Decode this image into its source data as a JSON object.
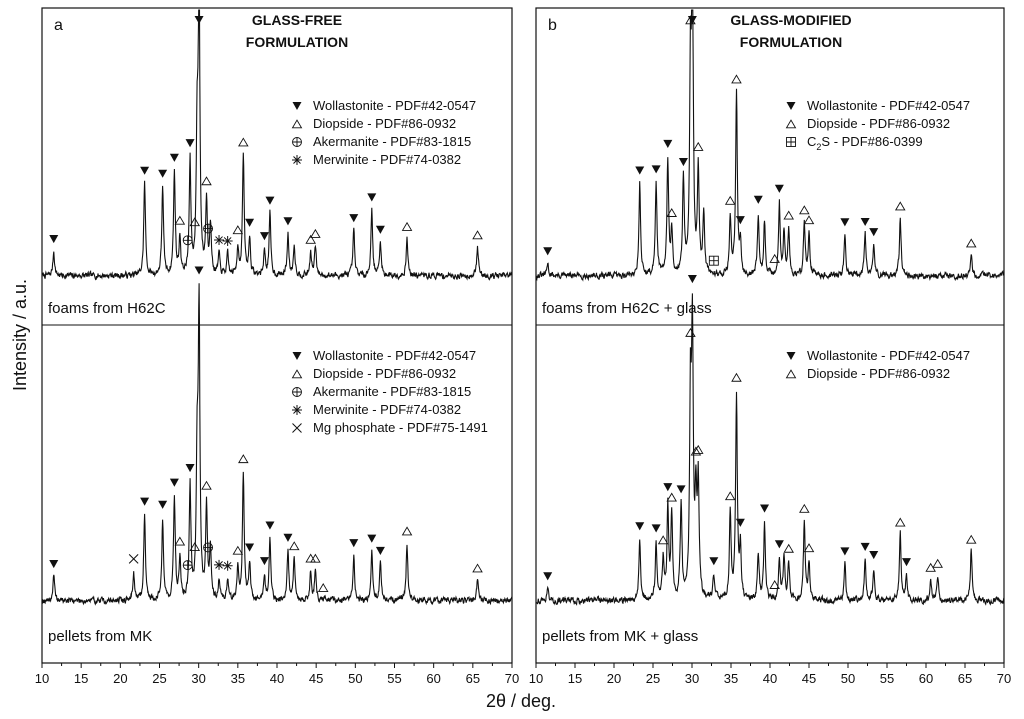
{
  "chart_data": {
    "type": "line",
    "ylabel": "Intensity / a.u.",
    "xlabel": "2θ / deg.",
    "xlim": [
      10,
      70
    ],
    "xticks": [
      10,
      15,
      20,
      25,
      30,
      35,
      40,
      45,
      50,
      55,
      60,
      65,
      70
    ],
    "phases": {
      "W": {
        "name": "Wollastonite - PDF#42-0547",
        "marker": "down-triangle"
      },
      "D": {
        "name": "Diopside - PDF#86-0932",
        "marker": "open-triangle"
      },
      "A": {
        "name": "Akermanite - PDF#83-1815",
        "marker": "crossed-circle"
      },
      "M": {
        "name": "Merwinite - PDF#74-0382",
        "marker": "star"
      },
      "P": {
        "name": "Mg phosphate - PDF#75-1491",
        "marker": "x"
      },
      "C": {
        "name": "C",
        "sub": "2",
        "tail": "S - PDF#86-0399",
        "marker": "boxed-plus"
      }
    },
    "panels": [
      {
        "id": "a",
        "letter": "a",
        "title_line1": "GLASS-FREE",
        "title_line2": "FORMULATION",
        "traces": [
          {
            "label": "foams from H62C",
            "baseline": 0.06,
            "noise": 0.025,
            "seed": 7,
            "peaks": [
              [
                11.5,
                0.12
              ],
              [
                23.1,
                0.45
              ],
              [
                25.4,
                0.43
              ],
              [
                26.9,
                0.5
              ],
              [
                27.6,
                0.18
              ],
              [
                28.9,
                0.55
              ],
              [
                29.8,
                0.62
              ],
              [
                30.05,
                1.4
              ],
              [
                31.0,
                0.35
              ],
              [
                31.5,
                0.25
              ],
              [
                32.6,
                0.1
              ],
              [
                33.7,
                0.1
              ],
              [
                35.0,
                0.14
              ],
              [
                35.7,
                0.58
              ],
              [
                36.5,
                0.18
              ],
              [
                38.4,
                0.12
              ],
              [
                39.1,
                0.3
              ],
              [
                41.4,
                0.2
              ],
              [
                42.2,
                0.15
              ],
              [
                44.3,
                0.11
              ],
              [
                44.9,
                0.14
              ],
              [
                49.8,
                0.22
              ],
              [
                52.1,
                0.32
              ],
              [
                53.2,
                0.16
              ],
              [
                56.6,
                0.18
              ],
              [
                65.6,
                0.14
              ]
            ],
            "markers": [
              [
                "W",
                11.5
              ],
              [
                "W",
                23.1
              ],
              [
                "W",
                25.4
              ],
              [
                "W",
                26.9
              ],
              [
                "D",
                27.6
              ],
              [
                "A",
                28.6
              ],
              [
                "W",
                28.9
              ],
              [
                "D",
                29.5
              ],
              [
                "W",
                30.05
              ],
              [
                "D",
                31.0
              ],
              [
                "A",
                31.2
              ],
              [
                "M",
                32.6
              ],
              [
                "M",
                33.7
              ],
              [
                "D",
                35.0
              ],
              [
                "D",
                35.7
              ],
              [
                "W",
                36.5
              ],
              [
                "W",
                38.4
              ],
              [
                "W",
                39.1
              ],
              [
                "W",
                41.4
              ],
              [
                "D",
                44.3
              ],
              [
                "D",
                44.9
              ],
              [
                "W",
                49.8
              ],
              [
                "W",
                52.1
              ],
              [
                "W",
                53.2
              ],
              [
                "D",
                56.6
              ],
              [
                "D",
                65.6
              ]
            ],
            "legend": [
              "W",
              "D",
              "A",
              "M"
            ]
          },
          {
            "label": "pellets from MK",
            "baseline": 0.06,
            "noise": 0.025,
            "seed": 19,
            "peaks": [
              [
                11.5,
                0.12
              ],
              [
                21.7,
                0.14
              ],
              [
                23.1,
                0.42
              ],
              [
                25.4,
                0.4
              ],
              [
                26.9,
                0.5
              ],
              [
                27.6,
                0.2
              ],
              [
                28.9,
                0.55
              ],
              [
                29.8,
                0.62
              ],
              [
                30.05,
                1.4
              ],
              [
                31.0,
                0.45
              ],
              [
                31.5,
                0.25
              ],
              [
                32.6,
                0.1
              ],
              [
                33.7,
                0.1
              ],
              [
                35.0,
                0.16
              ],
              [
                35.7,
                0.62
              ],
              [
                36.5,
                0.18
              ],
              [
                38.4,
                0.12
              ],
              [
                39.1,
                0.3
              ],
              [
                41.4,
                0.24
              ],
              [
                42.2,
                0.2
              ],
              [
                44.3,
                0.14
              ],
              [
                44.9,
                0.14
              ],
              [
                49.8,
                0.22
              ],
              [
                52.1,
                0.24
              ],
              [
                53.2,
                0.18
              ],
              [
                56.6,
                0.28
              ],
              [
                65.6,
                0.1
              ]
            ],
            "markers": [
              [
                "W",
                11.5
              ],
              [
                "P",
                21.7
              ],
              [
                "W",
                23.1
              ],
              [
                "W",
                25.4
              ],
              [
                "W",
                26.9
              ],
              [
                "D",
                27.6
              ],
              [
                "A",
                28.6
              ],
              [
                "W",
                28.9
              ],
              [
                "D",
                29.5
              ],
              [
                "W",
                30.05
              ],
              [
                "D",
                31.0
              ],
              [
                "A",
                31.2
              ],
              [
                "M",
                32.6
              ],
              [
                "M",
                33.7
              ],
              [
                "D",
                35.0
              ],
              [
                "D",
                35.7
              ],
              [
                "W",
                36.5
              ],
              [
                "W",
                38.4
              ],
              [
                "W",
                39.1
              ],
              [
                "W",
                41.4
              ],
              [
                "D",
                42.2
              ],
              [
                "D",
                44.3
              ],
              [
                "D",
                44.9
              ],
              [
                "D",
                45.9
              ],
              [
                "W",
                49.8
              ],
              [
                "W",
                52.1
              ],
              [
                "W",
                53.2
              ],
              [
                "D",
                56.6
              ],
              [
                "D",
                65.6
              ]
            ],
            "legend": [
              "W",
              "D",
              "A",
              "M",
              "P"
            ]
          }
        ]
      },
      {
        "id": "b",
        "letter": "b",
        "title_line1": "GLASS-MODIFIED",
        "title_line2": "FORMULATION",
        "traces": [
          {
            "label": "foams from H62C + glass",
            "baseline": 0.06,
            "noise": 0.025,
            "seed": 31,
            "peaks": [
              [
                11.5,
                0.06
              ],
              [
                23.3,
                0.45
              ],
              [
                25.4,
                0.45
              ],
              [
                26.9,
                0.56
              ],
              [
                27.4,
                0.2
              ],
              [
                28.9,
                0.45
              ],
              [
                29.8,
                0.95
              ],
              [
                30.05,
                1.4
              ],
              [
                30.8,
                0.5
              ],
              [
                31.5,
                0.3
              ],
              [
                34.9,
                0.28
              ],
              [
                35.7,
                0.88
              ],
              [
                36.2,
                0.15
              ],
              [
                38.5,
                0.3
              ],
              [
                39.3,
                0.25
              ],
              [
                41.2,
                0.35
              ],
              [
                41.8,
                0.2
              ],
              [
                42.4,
                0.22
              ],
              [
                44.4,
                0.25
              ],
              [
                45.0,
                0.2
              ],
              [
                49.6,
                0.2
              ],
              [
                52.2,
                0.2
              ],
              [
                53.3,
                0.15
              ],
              [
                56.7,
                0.28
              ],
              [
                65.8,
                0.1
              ]
            ],
            "markers": [
              [
                "W",
                11.5
              ],
              [
                "W",
                23.3
              ],
              [
                "W",
                25.4
              ],
              [
                "W",
                26.9
              ],
              [
                "D",
                27.4
              ],
              [
                "W",
                28.9
              ],
              [
                "D",
                29.8
              ],
              [
                "W",
                30.05
              ],
              [
                "D",
                30.8
              ],
              [
                "C",
                32.8
              ],
              [
                "D",
                34.9
              ],
              [
                "D",
                35.7
              ],
              [
                "W",
                36.2
              ],
              [
                "W",
                38.5
              ],
              [
                "W",
                41.2
              ],
              [
                "D",
                40.6
              ],
              [
                "D",
                42.4
              ],
              [
                "D",
                44.4
              ],
              [
                "D",
                45.0
              ],
              [
                "W",
                49.6
              ],
              [
                "W",
                52.2
              ],
              [
                "W",
                53.3
              ],
              [
                "D",
                56.7
              ],
              [
                "D",
                65.8
              ]
            ],
            "legend": [
              "W",
              "D",
              "C"
            ]
          },
          {
            "label": "pellets from MK + glass",
            "baseline": 0.06,
            "noise": 0.025,
            "seed": 43,
            "peaks": [
              [
                11.5,
                0.06
              ],
              [
                23.3,
                0.3
              ],
              [
                25.4,
                0.28
              ],
              [
                26.3,
                0.2
              ],
              [
                26.9,
                0.45
              ],
              [
                27.4,
                0.4
              ],
              [
                28.6,
                0.45
              ],
              [
                29.8,
                0.95
              ],
              [
                30.05,
                1.25
              ],
              [
                30.5,
                0.45
              ],
              [
                30.8,
                0.55
              ],
              [
                32.8,
                0.12
              ],
              [
                34.9,
                0.42
              ],
              [
                35.7,
                1.0
              ],
              [
                36.2,
                0.25
              ],
              [
                38.5,
                0.22
              ],
              [
                39.3,
                0.38
              ],
              [
                41.2,
                0.2
              ],
              [
                41.8,
                0.22
              ],
              [
                42.4,
                0.18
              ],
              [
                44.4,
                0.38
              ],
              [
                45.0,
                0.18
              ],
              [
                49.6,
                0.18
              ],
              [
                52.2,
                0.2
              ],
              [
                53.3,
                0.16
              ],
              [
                56.7,
                0.32
              ],
              [
                57.5,
                0.12
              ],
              [
                60.6,
                0.1
              ],
              [
                61.5,
                0.12
              ],
              [
                65.8,
                0.24
              ]
            ],
            "markers": [
              [
                "W",
                11.5
              ],
              [
                "W",
                23.3
              ],
              [
                "W",
                25.4
              ],
              [
                "D",
                26.3
              ],
              [
                "W",
                26.9
              ],
              [
                "D",
                27.4
              ],
              [
                "W",
                28.6
              ],
              [
                "D",
                29.8
              ],
              [
                "W",
                30.05
              ],
              [
                "D",
                30.5
              ],
              [
                "D",
                30.8
              ],
              [
                "W",
                32.8
              ],
              [
                "D",
                34.9
              ],
              [
                "D",
                35.7
              ],
              [
                "W",
                36.2
              ],
              [
                "W",
                39.3
              ],
              [
                "D",
                40.6
              ],
              [
                "W",
                41.2
              ],
              [
                "D",
                42.4
              ],
              [
                "D",
                44.4
              ],
              [
                "D",
                45.0
              ],
              [
                "W",
                49.6
              ],
              [
                "W",
                52.2
              ],
              [
                "W",
                53.3
              ],
              [
                "D",
                56.7
              ],
              [
                "W",
                57.5
              ],
              [
                "D",
                60.6
              ],
              [
                "D",
                61.5
              ],
              [
                "D",
                65.8
              ]
            ],
            "legend": [
              "W",
              "D"
            ]
          }
        ]
      }
    ]
  }
}
